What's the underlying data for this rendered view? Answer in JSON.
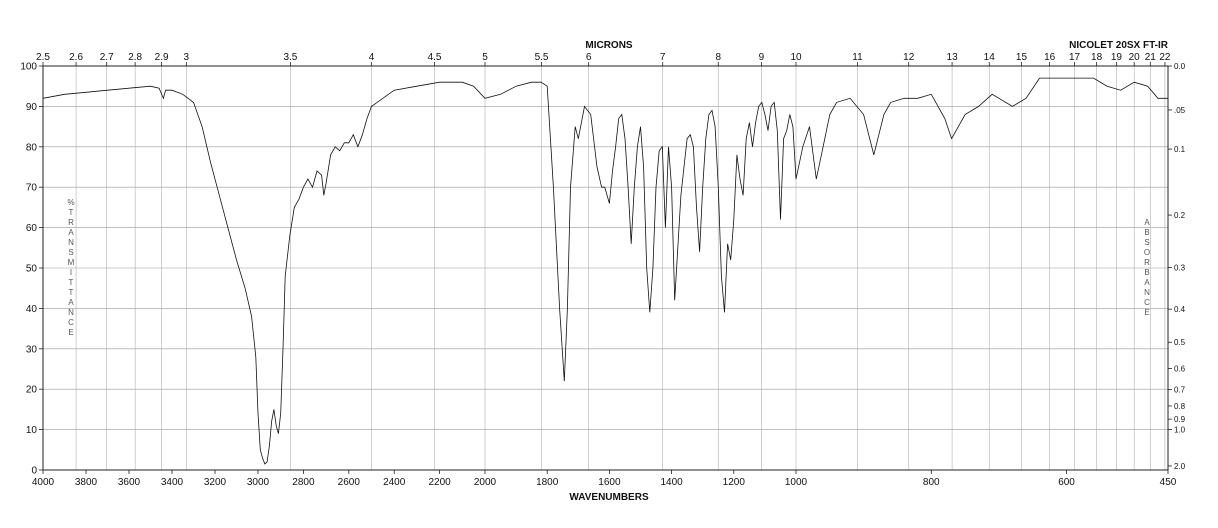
{
  "chart_data": {
    "type": "line",
    "title": "",
    "instrument": "NICOLET 20SX FT-IR",
    "xlabel": "WAVENUMBERS",
    "x2label": "MICRONS",
    "ylabel": "% TRANSMITTANCE",
    "y2label": "ABSORBANCE",
    "xlim": [
      4000,
      450
    ],
    "ylim": [
      0,
      100
    ],
    "xscale_note": "linear 4000-2000, compressed 2000-450",
    "x_ticks": [
      "4000",
      "3800",
      "3600",
      "3400",
      "3200",
      "3000",
      "2800",
      "2600",
      "2400",
      "2200",
      "2000",
      "1800",
      "1600",
      "1400",
      "1200",
      "1000",
      "800",
      "600",
      "450"
    ],
    "y_ticks": [
      "0",
      "10",
      "20",
      "30",
      "40",
      "50",
      "60",
      "70",
      "80",
      "90",
      "100"
    ],
    "micron_ticks": [
      "2.5",
      "2.6",
      "2.7",
      "2.8",
      "2.9",
      "3",
      "3.5",
      "4",
      "4.5",
      "5",
      "5.5",
      "6",
      "7",
      "8",
      "9",
      "10",
      "11",
      "12",
      "13",
      "14",
      "15",
      "16",
      "17",
      "18",
      "19",
      "20",
      "21",
      "22"
    ],
    "absorbance_ticks": [
      "0.0",
      ".05",
      "0.1",
      "0.2",
      "0.3",
      "0.4",
      "0.5",
      "0.6",
      "0.7",
      "0.8",
      "0.9",
      "1.0",
      "2.0"
    ],
    "grid": true,
    "series": [
      {
        "points": [
          [
            4000,
            92
          ],
          [
            3900,
            93
          ],
          [
            3800,
            93.5
          ],
          [
            3700,
            94
          ],
          [
            3600,
            94.5
          ],
          [
            3500,
            95
          ],
          [
            3460,
            94.5
          ],
          [
            3440,
            92
          ],
          [
            3430,
            94
          ],
          [
            3400,
            94
          ],
          [
            3350,
            93
          ],
          [
            3300,
            91
          ],
          [
            3260,
            85
          ],
          [
            3220,
            76
          ],
          [
            3180,
            68
          ],
          [
            3140,
            60
          ],
          [
            3100,
            52
          ],
          [
            3060,
            45
          ],
          [
            3030,
            38
          ],
          [
            3010,
            28
          ],
          [
            3000,
            14
          ],
          [
            2990,
            5
          ],
          [
            2980,
            3
          ],
          [
            2970,
            1.5
          ],
          [
            2960,
            2
          ],
          [
            2950,
            6
          ],
          [
            2940,
            12
          ],
          [
            2930,
            15
          ],
          [
            2920,
            11
          ],
          [
            2910,
            9
          ],
          [
            2900,
            14
          ],
          [
            2890,
            30
          ],
          [
            2880,
            48
          ],
          [
            2860,
            58
          ],
          [
            2840,
            65
          ],
          [
            2820,
            67
          ],
          [
            2800,
            70
          ],
          [
            2780,
            72
          ],
          [
            2760,
            70
          ],
          [
            2740,
            74
          ],
          [
            2720,
            73
          ],
          [
            2710,
            68
          ],
          [
            2700,
            71
          ],
          [
            2680,
            78
          ],
          [
            2660,
            80
          ],
          [
            2640,
            79
          ],
          [
            2620,
            81
          ],
          [
            2600,
            81
          ],
          [
            2580,
            83
          ],
          [
            2560,
            80
          ],
          [
            2540,
            83
          ],
          [
            2520,
            87
          ],
          [
            2500,
            90
          ],
          [
            2450,
            92
          ],
          [
            2400,
            94
          ],
          [
            2300,
            95
          ],
          [
            2200,
            96
          ],
          [
            2100,
            96
          ],
          [
            2050,
            95
          ],
          [
            2000,
            92
          ],
          [
            1950,
            93
          ],
          [
            1900,
            95
          ],
          [
            1850,
            96
          ],
          [
            1820,
            96
          ],
          [
            1800,
            95
          ],
          [
            1780,
            70
          ],
          [
            1760,
            40
          ],
          [
            1745,
            22
          ],
          [
            1735,
            40
          ],
          [
            1725,
            70
          ],
          [
            1710,
            85
          ],
          [
            1700,
            82
          ],
          [
            1680,
            90
          ],
          [
            1660,
            88
          ],
          [
            1640,
            75
          ],
          [
            1625,
            70
          ],
          [
            1615,
            70
          ],
          [
            1600,
            66
          ],
          [
            1590,
            74
          ],
          [
            1580,
            80
          ],
          [
            1570,
            87
          ],
          [
            1560,
            88
          ],
          [
            1550,
            82
          ],
          [
            1540,
            70
          ],
          [
            1530,
            56
          ],
          [
            1520,
            70
          ],
          [
            1510,
            80
          ],
          [
            1500,
            85
          ],
          [
            1490,
            75
          ],
          [
            1480,
            50
          ],
          [
            1470,
            39
          ],
          [
            1460,
            50
          ],
          [
            1450,
            70
          ],
          [
            1440,
            79
          ],
          [
            1430,
            80
          ],
          [
            1420,
            60
          ],
          [
            1410,
            80
          ],
          [
            1400,
            70
          ],
          [
            1390,
            42
          ],
          [
            1380,
            55
          ],
          [
            1370,
            68
          ],
          [
            1360,
            75
          ],
          [
            1350,
            82
          ],
          [
            1340,
            83
          ],
          [
            1330,
            80
          ],
          [
            1320,
            65
          ],
          [
            1310,
            54
          ],
          [
            1300,
            70
          ],
          [
            1290,
            82
          ],
          [
            1280,
            88
          ],
          [
            1270,
            89
          ],
          [
            1260,
            85
          ],
          [
            1250,
            70
          ],
          [
            1240,
            48
          ],
          [
            1230,
            39
          ],
          [
            1220,
            56
          ],
          [
            1210,
            52
          ],
          [
            1200,
            62
          ],
          [
            1190,
            78
          ],
          [
            1180,
            72
          ],
          [
            1170,
            68
          ],
          [
            1160,
            82
          ],
          [
            1150,
            86
          ],
          [
            1140,
            80
          ],
          [
            1130,
            86
          ],
          [
            1120,
            90
          ],
          [
            1110,
            91
          ],
          [
            1100,
            88
          ],
          [
            1090,
            84
          ],
          [
            1080,
            90
          ],
          [
            1070,
            91
          ],
          [
            1060,
            84
          ],
          [
            1050,
            62
          ],
          [
            1040,
            82
          ],
          [
            1030,
            84
          ],
          [
            1020,
            88
          ],
          [
            1010,
            85
          ],
          [
            1000,
            72
          ],
          [
            990,
            80
          ],
          [
            980,
            85
          ],
          [
            970,
            72
          ],
          [
            960,
            80
          ],
          [
            950,
            88
          ],
          [
            940,
            91
          ],
          [
            920,
            92
          ],
          [
            900,
            88
          ],
          [
            885,
            78
          ],
          [
            870,
            88
          ],
          [
            860,
            91
          ],
          [
            840,
            92
          ],
          [
            820,
            92
          ],
          [
            800,
            93
          ],
          [
            780,
            87
          ],
          [
            770,
            82
          ],
          [
            750,
            88
          ],
          [
            730,
            90
          ],
          [
            710,
            93
          ],
          [
            700,
            92
          ],
          [
            680,
            90
          ],
          [
            660,
            92
          ],
          [
            640,
            97
          ],
          [
            620,
            97
          ],
          [
            600,
            97
          ],
          [
            580,
            97
          ],
          [
            560,
            97
          ],
          [
            540,
            95
          ],
          [
            520,
            94
          ],
          [
            500,
            96
          ],
          [
            480,
            95
          ],
          [
            465,
            92
          ],
          [
            455,
            92
          ],
          [
            450,
            92
          ]
        ]
      }
    ]
  }
}
